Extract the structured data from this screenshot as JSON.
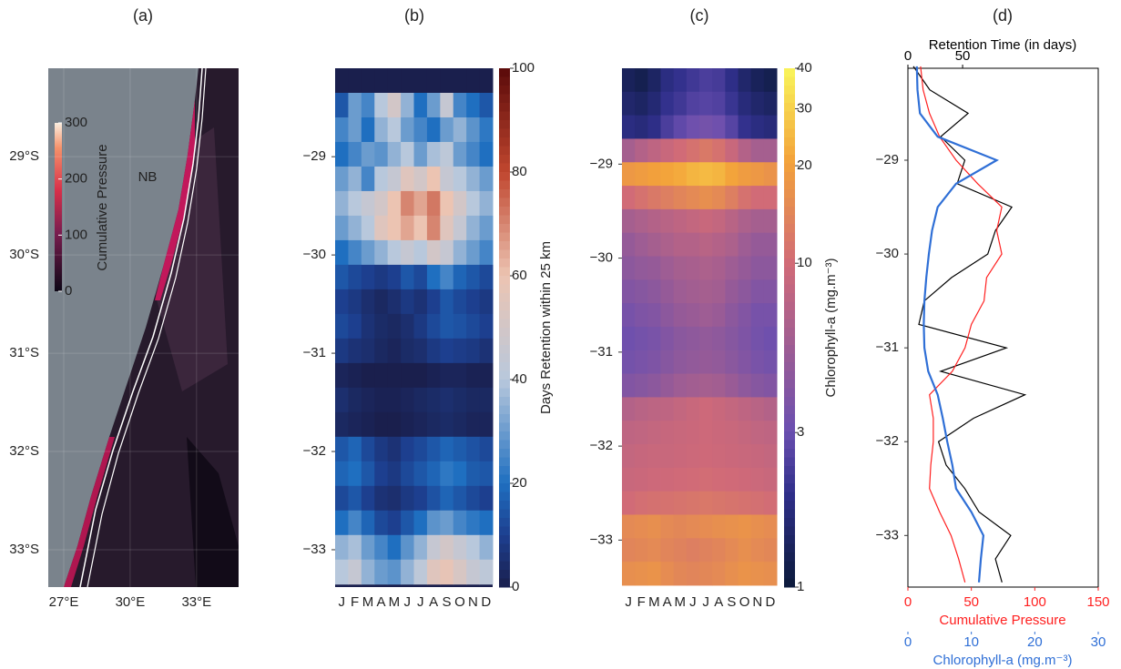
{
  "chart_data": [
    {
      "type": "map",
      "title": "(a)",
      "annotation": "NB",
      "ylim": [
        -28.1,
        -33.38
      ],
      "yticks": [
        {
          "value": -29,
          "label": "29°S"
        },
        {
          "value": -30,
          "label": "30°S"
        },
        {
          "value": -31,
          "label": "31°S"
        },
        {
          "value": -32,
          "label": "32°S"
        },
        {
          "value": -33,
          "label": "33°S"
        }
      ],
      "xlim": [
        26.3,
        34.9
      ],
      "xticks": [
        {
          "value": 27,
          "label": "27°E"
        },
        {
          "value": 30,
          "label": "30°E"
        },
        {
          "value": 33,
          "label": "33°E"
        }
      ],
      "colorbar": {
        "label": "Cumulative Pressure",
        "lim": [
          0,
          300
        ],
        "ticks": [
          0,
          100,
          200,
          300
        ]
      }
    },
    {
      "type": "heatmap",
      "title": "(b)",
      "categories": [
        "J",
        "F",
        "M",
        "A",
        "M",
        "J",
        "J",
        "A",
        "S",
        "O",
        "N",
        "D"
      ],
      "ylim": [
        -28.1,
        -33.38
      ],
      "yticks": [
        {
          "value": -29,
          "label": "−29"
        },
        {
          "value": -30,
          "label": "−30"
        },
        {
          "value": -31,
          "label": "−31"
        },
        {
          "value": -32,
          "label": "−32"
        },
        {
          "value": -33,
          "label": "−33"
        }
      ],
      "y_bins": [
        -28.1,
        -28.35,
        -28.6,
        -28.85,
        -29.1,
        -29.35,
        -29.6,
        -29.85,
        -30.1,
        -30.35,
        -30.6,
        -30.85,
        -31.1,
        -31.35,
        -31.6,
        -31.85,
        -32.1,
        -32.35,
        -32.6,
        -32.85,
        -33.1,
        -33.35
      ],
      "z": [
        [
          0,
          0,
          0,
          0,
          0,
          0,
          0,
          0,
          0,
          0,
          0,
          0
        ],
        [
          15,
          30,
          25,
          40,
          50,
          35,
          20,
          30,
          45,
          25,
          20,
          15
        ],
        [
          25,
          30,
          20,
          35,
          40,
          30,
          25,
          20,
          30,
          35,
          28,
          22
        ],
        [
          20,
          25,
          30,
          28,
          35,
          40,
          30,
          38,
          42,
          30,
          25,
          20
        ],
        [
          30,
          35,
          25,
          40,
          45,
          55,
          50,
          60,
          45,
          40,
          35,
          30
        ],
        [
          35,
          40,
          45,
          50,
          60,
          70,
          65,
          72,
          60,
          50,
          40,
          35
        ],
        [
          30,
          35,
          40,
          55,
          60,
          65,
          60,
          70,
          55,
          45,
          35,
          30
        ],
        [
          20,
          25,
          30,
          35,
          40,
          45,
          40,
          50,
          45,
          35,
          30,
          25
        ],
        [
          15,
          12,
          10,
          8,
          10,
          15,
          12,
          20,
          25,
          18,
          15,
          12
        ],
        [
          10,
          8,
          5,
          3,
          5,
          8,
          6,
          10,
          15,
          12,
          10,
          8
        ],
        [
          12,
          10,
          6,
          4,
          3,
          5,
          8,
          12,
          15,
          14,
          12,
          10
        ],
        [
          8,
          6,
          5,
          3,
          2,
          4,
          5,
          8,
          10,
          9,
          8,
          6
        ],
        [
          2,
          1,
          0,
          0,
          0,
          0,
          0,
          1,
          2,
          2,
          1,
          1
        ],
        [
          5,
          3,
          2,
          1,
          1,
          2,
          3,
          4,
          5,
          4,
          3,
          3
        ],
        [
          3,
          2,
          1,
          0,
          0,
          1,
          2,
          3,
          4,
          3,
          2,
          2
        ],
        [
          15,
          18,
          12,
          8,
          6,
          10,
          12,
          15,
          18,
          16,
          14,
          12
        ],
        [
          18,
          20,
          15,
          10,
          8,
          12,
          15,
          18,
          22,
          20,
          16,
          15
        ],
        [
          12,
          15,
          10,
          6,
          5,
          8,
          10,
          14,
          18,
          15,
          12,
          10
        ],
        [
          20,
          25,
          18,
          12,
          10,
          15,
          20,
          28,
          30,
          25,
          22,
          20
        ],
        [
          35,
          38,
          30,
          25,
          20,
          28,
          35,
          45,
          50,
          45,
          40,
          35
        ],
        [
          40,
          45,
          35,
          30,
          28,
          35,
          42,
          55,
          58,
          52,
          45,
          42
        ]
      ],
      "colorbar": {
        "label": "Days Retention within 25 km",
        "lim": [
          0,
          100
        ],
        "ticks": [
          0,
          20,
          40,
          60,
          80,
          100
        ],
        "log": false
      }
    },
    {
      "type": "heatmap",
      "title": "(c)",
      "categories": [
        "J",
        "F",
        "M",
        "A",
        "M",
        "J",
        "J",
        "A",
        "S",
        "O",
        "N",
        "D"
      ],
      "ylim": [
        -27.98,
        -33.5
      ],
      "yticks": [
        {
          "value": -29,
          "label": "−29"
        },
        {
          "value": -30,
          "label": "−30"
        },
        {
          "value": -31,
          "label": "−31"
        },
        {
          "value": -32,
          "label": "−32"
        },
        {
          "value": -33,
          "label": "−33"
        }
      ],
      "y_bins": [
        -27.98,
        -28.23,
        -28.48,
        -28.73,
        -28.98,
        -29.23,
        -29.48,
        -29.73,
        -29.98,
        -30.23,
        -30.48,
        -30.73,
        -30.98,
        -31.23,
        -31.48,
        -31.73,
        -31.98,
        -32.23,
        -32.48,
        -32.73,
        -32.98,
        -33.23,
        -33.48
      ],
      "z": [
        [
          1.3,
          1.2,
          1.4,
          1.8,
          2.0,
          2.2,
          2.4,
          2.3,
          1.9,
          1.5,
          1.3,
          1.2
        ],
        [
          1.5,
          1.4,
          1.6,
          2.0,
          2.2,
          2.5,
          2.6,
          2.5,
          2.1,
          1.7,
          1.5,
          1.4
        ],
        [
          1.8,
          1.7,
          1.9,
          2.4,
          2.8,
          3.2,
          3.4,
          3.2,
          2.6,
          2.0,
          1.8,
          1.7
        ],
        [
          6,
          7,
          8,
          9,
          10,
          11,
          12,
          11,
          9,
          7,
          6,
          6
        ],
        [
          18,
          19,
          20,
          21,
          22,
          24,
          25,
          24,
          21,
          19,
          18,
          17
        ],
        [
          10,
          11,
          12,
          13,
          14,
          15,
          16,
          15,
          13,
          11,
          10,
          10
        ],
        [
          6,
          6.5,
          7,
          7.5,
          8,
          8.5,
          9,
          8.5,
          7.5,
          6.5,
          6,
          6
        ],
        [
          5,
          5.5,
          6,
          6.5,
          7,
          7,
          7.5,
          7,
          6.5,
          5.5,
          5,
          5
        ],
        [
          4.5,
          4.8,
          5,
          5.5,
          6,
          6.2,
          6.5,
          6.2,
          5.5,
          5,
          4.5,
          4.5
        ],
        [
          4,
          4.2,
          4.5,
          5,
          5.5,
          5.8,
          6,
          5.8,
          5,
          4.5,
          4,
          4
        ],
        [
          3.5,
          3.8,
          4,
          4.5,
          5,
          5.2,
          5.5,
          5.2,
          4.5,
          4,
          3.5,
          3.5
        ],
        [
          3.2,
          3.4,
          3.6,
          4,
          4.4,
          4.6,
          4.8,
          4.6,
          4.2,
          3.8,
          3.4,
          3.2
        ],
        [
          3.4,
          3.6,
          3.8,
          4.2,
          4.6,
          4.8,
          5,
          4.8,
          4.4,
          4,
          3.6,
          3.4
        ],
        [
          4,
          4.2,
          4.5,
          5,
          5.5,
          5.8,
          6,
          5.8,
          5.2,
          4.6,
          4.2,
          4
        ],
        [
          7,
          7.5,
          7.8,
          8,
          8.5,
          9,
          9.5,
          9,
          8.5,
          8,
          7.5,
          7
        ],
        [
          8,
          8.2,
          8.5,
          8.8,
          9,
          9.2,
          9.5,
          9.2,
          9,
          8.6,
          8.2,
          8
        ],
        [
          8.5,
          8.8,
          9,
          9,
          9.2,
          9.4,
          9.6,
          9.4,
          9.2,
          9,
          8.8,
          8.5
        ],
        [
          9,
          9.2,
          9.5,
          9.6,
          9.8,
          10,
          10.2,
          10,
          9.8,
          9.6,
          9.3,
          9
        ],
        [
          10,
          10.5,
          10.8,
          11,
          11.2,
          11.5,
          11.8,
          11.5,
          11.2,
          11,
          10.6,
          10.2
        ],
        [
          15,
          15.5,
          16,
          15,
          14.5,
          15,
          15.5,
          16,
          16.5,
          17,
          16,
          15.5
        ],
        [
          14,
          14.5,
          15,
          14,
          13.5,
          13,
          13.5,
          14,
          15,
          16,
          15,
          14.5
        ],
        [
          16,
          16.5,
          17,
          15.5,
          14.5,
          14,
          14.5,
          15,
          16,
          17,
          16.5,
          16
        ]
      ],
      "colorbar": {
        "label": "Chlorophyll-a (mg.m⁻³)",
        "lim": [
          1,
          40
        ],
        "ticks": [
          1,
          3,
          10,
          20,
          30,
          40
        ],
        "log": true
      }
    },
    {
      "type": "line",
      "title": "(d)",
      "ylim": [
        -28.02,
        -33.55
      ],
      "yticks": [
        {
          "value": -29,
          "label": "−29"
        },
        {
          "value": -30,
          "label": "−30"
        },
        {
          "value": -31,
          "label": "−31"
        },
        {
          "value": -32,
          "label": "−32"
        },
        {
          "value": -33,
          "label": "−33"
        }
      ],
      "y": [
        -28.0,
        -28.25,
        -28.5,
        -28.75,
        -29.0,
        -29.25,
        -29.5,
        -29.75,
        -30.0,
        -30.25,
        -30.5,
        -30.75,
        -31.0,
        -31.25,
        -31.5,
        -31.75,
        -32.0,
        -32.25,
        -32.5,
        -32.75,
        -33.0,
        -33.25,
        -33.5
      ],
      "axes": [
        {
          "name": "Retention Time (in days)",
          "lim": [
            0,
            174
          ],
          "ticks": [
            0,
            50
          ],
          "color": "#000000"
        },
        {
          "name": "Cumulative Pressure",
          "lim": [
            0,
            150
          ],
          "ticks": [
            0,
            50,
            100,
            150
          ],
          "color": "#ff2020"
        },
        {
          "name": "Chlorophyll-a (mg.m⁻³)",
          "lim": [
            0,
            30
          ],
          "ticks": [
            0,
            10,
            20,
            30
          ],
          "color": "#2f6fd6"
        }
      ],
      "series": [
        {
          "axis": 0,
          "color": "#000000",
          "values": [
            5,
            20,
            55,
            30,
            52,
            45,
            95,
            80,
            73,
            40,
            15,
            10,
            90,
            30,
            107,
            60,
            28,
            35,
            52,
            65,
            94,
            80,
            86
          ]
        },
        {
          "axis": 1,
          "color": "#ff2020",
          "values": [
            10,
            12,
            17,
            25,
            38,
            55,
            74,
            70,
            74,
            62,
            60,
            50,
            45,
            35,
            17,
            20,
            20,
            18,
            17,
            25,
            34,
            40,
            45
          ]
        },
        {
          "axis": 2,
          "color": "#2f6fd6",
          "values": [
            1.4,
            1.5,
            1.9,
            4.7,
            14,
            7.6,
            4.7,
            3.8,
            3.3,
            2.9,
            2.6,
            2.5,
            2.6,
            3.2,
            4.7,
            5.5,
            6.2,
            7,
            7.6,
            10,
            11.9,
            11.5,
            11.2
          ]
        }
      ]
    }
  ]
}
